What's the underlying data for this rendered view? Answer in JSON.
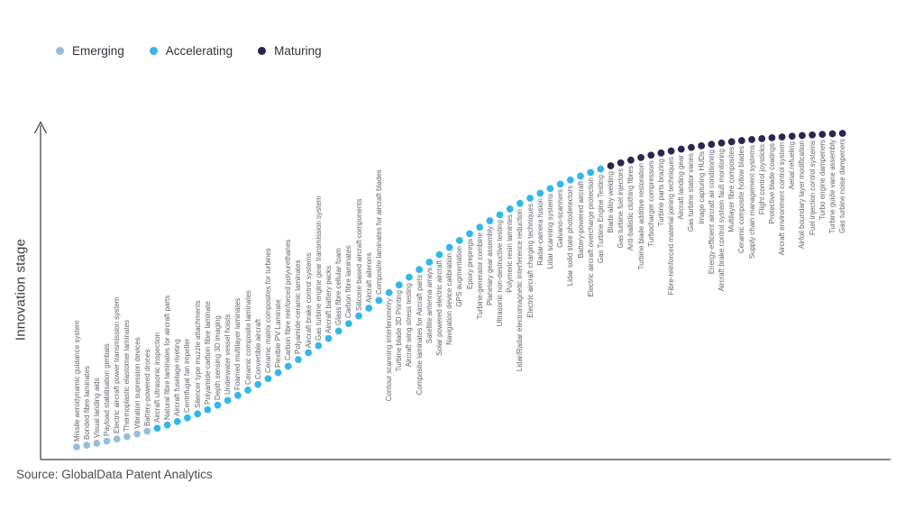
{
  "source": "Source: GlobalData Patent Analytics",
  "chart_data": {
    "type": "scatter",
    "title": "",
    "xlabel": "",
    "ylabel": "Innovation stage",
    "x_axis": "ordinal rank along S-curve (1-77)",
    "grid": false,
    "legend_position": "top-left",
    "curve_shape": "sigmoid rising left-to-right",
    "legend": [
      {
        "label": "Emerging",
        "key": "emerging"
      },
      {
        "label": "Accelerating",
        "key": "accelerating"
      },
      {
        "label": "Maturing",
        "key": "maturing"
      }
    ],
    "stage_colors": {
      "emerging": "#96bed7",
      "accelerating": "#33b7e8",
      "maturing": "#2a2551"
    },
    "items": [
      {
        "label": "Missile aerodynamic guidance system",
        "stage": "emerging"
      },
      {
        "label": "Bonded fibre laminates",
        "stage": "emerging"
      },
      {
        "label": "Visual landing aids",
        "stage": "emerging"
      },
      {
        "label": "Payload stabilisation gimbals",
        "stage": "emerging"
      },
      {
        "label": "Electric aircraft power transmission system",
        "stage": "emerging"
      },
      {
        "label": "Thermoplastic elastomer laminates",
        "stage": "emerging"
      },
      {
        "label": "Vibration supression devices",
        "stage": "emerging"
      },
      {
        "label": "Battery-powered drones",
        "stage": "emerging"
      },
      {
        "label": "Aircraft ultrasonic inspection",
        "stage": "accelerating"
      },
      {
        "label": "Natural fibre laminates for aircraft parts",
        "stage": "accelerating"
      },
      {
        "label": "Aircraft fuselage riveting",
        "stage": "accelerating"
      },
      {
        "label": "Centrifugal fan impeller",
        "stage": "accelerating"
      },
      {
        "label": "Silencer type muzzle attachments",
        "stage": "accelerating"
      },
      {
        "label": "Polyamide-carbon fibre laminate",
        "stage": "accelerating"
      },
      {
        "label": "Depth sensing 3D imaging",
        "stage": "accelerating"
      },
      {
        "label": "Underwater vessel hoists",
        "stage": "accelerating"
      },
      {
        "label": "Foamed multilayer laminates",
        "stage": "accelerating"
      },
      {
        "label": "Ceramic composite laminates",
        "stage": "accelerating"
      },
      {
        "label": "Convertible aircraft",
        "stage": "accelerating"
      },
      {
        "label": "Ceramic matrix composites for turbines",
        "stage": "accelerating"
      },
      {
        "label": "Flexible PV Laminate",
        "stage": "accelerating"
      },
      {
        "label": "Carbon fibre reinforced polyurethanes",
        "stage": "accelerating"
      },
      {
        "label": "Polyamide-ceramic laminates",
        "stage": "accelerating"
      },
      {
        "label": "Aircraft brake control systems",
        "stage": "accelerating"
      },
      {
        "label": "Gas turbine engine gear transmission system",
        "stage": "accelerating"
      },
      {
        "label": "Aircraft battery packs",
        "stage": "accelerating"
      },
      {
        "label": "Glass fibre cellular foam",
        "stage": "accelerating"
      },
      {
        "label": "Carbon fibre laminates",
        "stage": "accelerating"
      },
      {
        "label": "Silicone based aircraft components",
        "stage": "accelerating"
      },
      {
        "label": "Aircraft ailerons",
        "stage": "accelerating"
      },
      {
        "label": "Composite laminates for aircraft blades",
        "stage": "accelerating"
      },
      {
        "label": "Contour scanning interferometry",
        "stage": "accelerating"
      },
      {
        "label": "Turbine blade 3D Printing",
        "stage": "accelerating"
      },
      {
        "label": "Aircraft wing stress testing",
        "stage": "accelerating"
      },
      {
        "label": "Composite laminates for Aircraft parts",
        "stage": "accelerating"
      },
      {
        "label": "Satellite antenna arrays",
        "stage": "accelerating"
      },
      {
        "label": "Solar powered electric aircraft",
        "stage": "accelerating"
      },
      {
        "label": "Navigation device calibration",
        "stage": "accelerating"
      },
      {
        "label": "GPS augmentation",
        "stage": "accelerating"
      },
      {
        "label": "Epoxy prepregs",
        "stage": "accelerating"
      },
      {
        "label": "Turbine-generator combine",
        "stage": "accelerating"
      },
      {
        "label": "Planetary gear assembly",
        "stage": "accelerating"
      },
      {
        "label": "Ultrasonic non-destructive testing",
        "stage": "accelerating"
      },
      {
        "label": "Polymeric resin lamintes",
        "stage": "accelerating"
      },
      {
        "label": "Lidar/Radar electromagnetic interference reduction",
        "stage": "accelerating"
      },
      {
        "label": "Electric aircraft charging techniques",
        "stage": "accelerating"
      },
      {
        "label": "Radar-camera fusion",
        "stage": "accelerating"
      },
      {
        "label": "Lidar scanning systems",
        "stage": "accelerating"
      },
      {
        "label": "Galvano-scanners",
        "stage": "accelerating"
      },
      {
        "label": "Lidar solid state photodetectors",
        "stage": "accelerating"
      },
      {
        "label": "Battery-powered aircraft",
        "stage": "accelerating"
      },
      {
        "label": "Electric aircraft overcharge protection",
        "stage": "accelerating"
      },
      {
        "label": "Gas Turbine Engine Testing",
        "stage": "accelerating"
      },
      {
        "label": "Blade alloy welding",
        "stage": "maturing"
      },
      {
        "label": "Gas turbine fuel injectors",
        "stage": "maturing"
      },
      {
        "label": "Anti-ballistic clothing fibres",
        "stage": "maturing"
      },
      {
        "label": "Turbine blade additive restoration",
        "stage": "maturing"
      },
      {
        "label": "Turbocharger compressors",
        "stage": "maturing"
      },
      {
        "label": "Turbine parts brazing",
        "stage": "maturing"
      },
      {
        "label": "Fibre-reinforced material joining techniques",
        "stage": "maturing"
      },
      {
        "label": "Aircraft landing gear",
        "stage": "maturing"
      },
      {
        "label": "Gas turbine stator vanes",
        "stage": "maturing"
      },
      {
        "label": "Image capturing HUDs",
        "stage": "maturing"
      },
      {
        "label": "Energy-efficient aircraft air conditioning",
        "stage": "maturing"
      },
      {
        "label": "Aircraft brake control system fault monitoring",
        "stage": "maturing"
      },
      {
        "label": "Multilayer fibre composites",
        "stage": "maturing"
      },
      {
        "label": "Ceramic composite hollow blades",
        "stage": "maturing"
      },
      {
        "label": "Supply chain management systems",
        "stage": "maturing"
      },
      {
        "label": "Flight control joysticks",
        "stage": "maturing"
      },
      {
        "label": "Protective blade coatings",
        "stage": "maturing"
      },
      {
        "label": "Aircraft environment control system",
        "stage": "maturing"
      },
      {
        "label": "Aerial refueling",
        "stage": "maturing"
      },
      {
        "label": "Airfoil boundary layer modification",
        "stage": "maturing"
      },
      {
        "label": "Fuel injection control systems",
        "stage": "maturing"
      },
      {
        "label": "Turbo engine dampeners",
        "stage": "maturing"
      },
      {
        "label": "Turbine guide vane assembly",
        "stage": "maturing"
      },
      {
        "label": "Gas turbine noise dampeners",
        "stage": "maturing"
      }
    ]
  }
}
